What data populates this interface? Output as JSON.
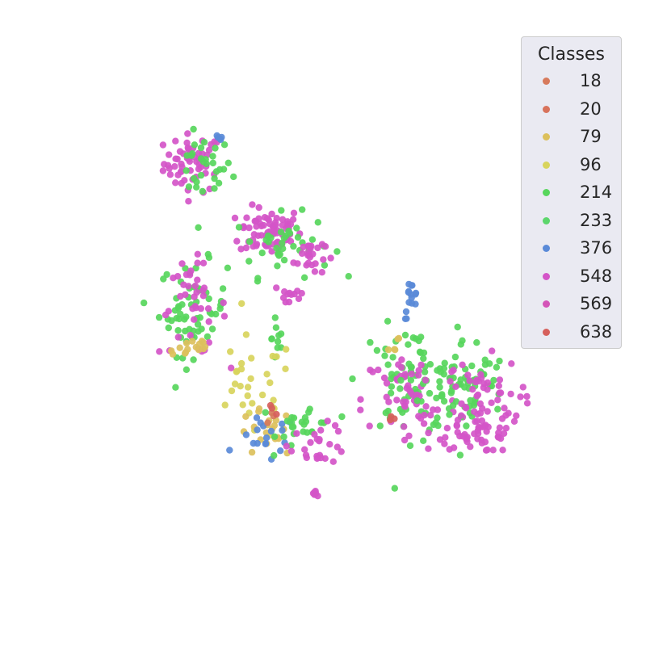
{
  "chart_data": {
    "type": "scatter",
    "title": "",
    "xlabel": "",
    "ylabel": "",
    "axes_visible": false,
    "grid": false,
    "legend": {
      "title": "Classes",
      "placement": "top-right",
      "entries": [
        {
          "label": "18",
          "color": "#d77a5c"
        },
        {
          "label": "20",
          "color": "#d8735c"
        },
        {
          "label": "79",
          "color": "#dcc05c"
        },
        {
          "label": "96",
          "color": "#d8d45c"
        },
        {
          "label": "214",
          "color": "#57d65c"
        },
        {
          "label": "233",
          "color": "#5cd66c"
        },
        {
          "label": "376",
          "color": "#5a8ad8"
        },
        {
          "label": "548",
          "color": "#d455c8"
        },
        {
          "label": "569",
          "color": "#d455b8"
        },
        {
          "label": "638",
          "color": "#d6605c"
        }
      ]
    },
    "xlim": [
      0,
      100
    ],
    "ylim": [
      0,
      100
    ],
    "clusters": [
      {
        "class": "548",
        "cx": 21.5,
        "cy": 83,
        "sx": 3.0,
        "sy": 3.0,
        "n": 55
      },
      {
        "class": "214",
        "cx": 23.5,
        "cy": 82,
        "sx": 3.0,
        "sy": 3.2,
        "n": 30
      },
      {
        "class": "376",
        "cx": 26.5,
        "cy": 88,
        "sx": 0.6,
        "sy": 0.4,
        "n": 5
      },
      {
        "class": "548",
        "cx": 37.5,
        "cy": 69,
        "sx": 3.2,
        "sy": 2.5,
        "n": 75
      },
      {
        "class": "214",
        "cx": 40.0,
        "cy": 66,
        "sx": 5.0,
        "sy": 3.2,
        "n": 40
      },
      {
        "class": "548",
        "cx": 45.5,
        "cy": 64,
        "sx": 1.6,
        "sy": 2.2,
        "n": 25
      },
      {
        "class": "214",
        "cx": 21.5,
        "cy": 53,
        "sx": 3.5,
        "sy": 4.8,
        "n": 60
      },
      {
        "class": "548",
        "cx": 21.5,
        "cy": 53,
        "sx": 3.5,
        "sy": 4.8,
        "n": 40
      },
      {
        "class": "79",
        "cx": 21.0,
        "cy": 45,
        "sx": 2.5,
        "sy": 1.2,
        "n": 15
      },
      {
        "class": "548",
        "cx": 41.5,
        "cy": 56,
        "sx": 2.0,
        "sy": 1.5,
        "n": 12
      },
      {
        "class": "214",
        "cx": 39.0,
        "cy": 47,
        "sx": 0.6,
        "sy": 4.0,
        "n": 10
      },
      {
        "class": "96",
        "cx": 33.5,
        "cy": 36,
        "sx": 4.5,
        "sy": 5.5,
        "n": 30
      },
      {
        "class": "79",
        "cx": 36.5,
        "cy": 27,
        "sx": 3.0,
        "sy": 2.5,
        "n": 20
      },
      {
        "class": "376",
        "cx": 37.0,
        "cy": 26,
        "sx": 3.0,
        "sy": 2.5,
        "n": 18
      },
      {
        "class": "18",
        "cx": 37.5,
        "cy": 30,
        "sx": 0.8,
        "sy": 0.6,
        "n": 3
      },
      {
        "class": "638",
        "cx": 38.0,
        "cy": 32,
        "sx": 0.8,
        "sy": 0.8,
        "n": 3
      },
      {
        "class": "214",
        "cx": 45.0,
        "cy": 29,
        "sx": 3.0,
        "sy": 2.5,
        "n": 25
      },
      {
        "class": "548",
        "cx": 47.5,
        "cy": 25,
        "sx": 3.0,
        "sy": 2.0,
        "n": 25
      },
      {
        "class": "548",
        "cx": 47.0,
        "cy": 15,
        "sx": 0.6,
        "sy": 0.4,
        "n": 6
      },
      {
        "class": "376",
        "cx": 66.5,
        "cy": 55,
        "sx": 0.7,
        "sy": 2.0,
        "n": 15
      },
      {
        "class": "214",
        "cx": 66.0,
        "cy": 38,
        "sx": 5.0,
        "sy": 5.5,
        "n": 75
      },
      {
        "class": "548",
        "cx": 66.5,
        "cy": 34,
        "sx": 5.0,
        "sy": 5.5,
        "n": 55
      },
      {
        "class": "214",
        "cx": 77.5,
        "cy": 37,
        "sx": 4.5,
        "sy": 5.0,
        "n": 60
      },
      {
        "class": "548",
        "cx": 80.5,
        "cy": 33,
        "sx": 4.2,
        "sy": 4.8,
        "n": 75
      },
      {
        "class": "548",
        "cx": 79.0,
        "cy": 26,
        "sx": 3.0,
        "sy": 1.2,
        "n": 20
      },
      {
        "class": "79",
        "cx": 62.0,
        "cy": 46,
        "sx": 1.5,
        "sy": 1.0,
        "n": 5
      },
      {
        "class": "638",
        "cx": 62.5,
        "cy": 30,
        "sx": 0.6,
        "sy": 0.4,
        "n": 3
      }
    ]
  }
}
